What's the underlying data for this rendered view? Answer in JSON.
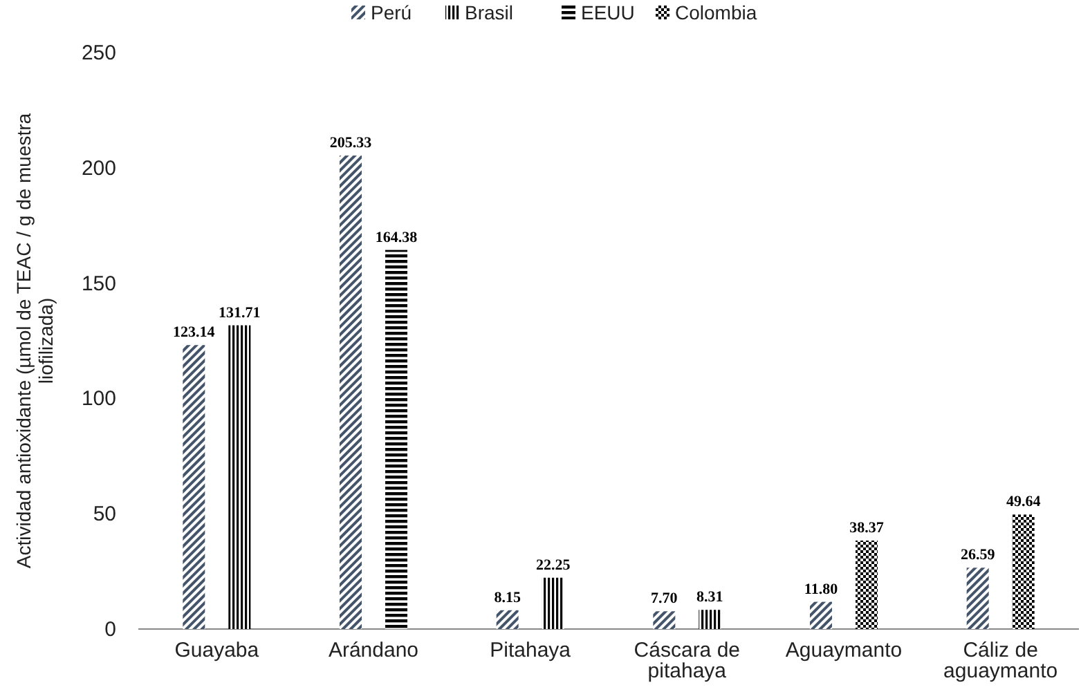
{
  "chart_data": {
    "type": "bar",
    "ylabel": "Actividad antioxidante (µmol de TEAC / g de muestra liofilizada)",
    "categories": [
      "Guayaba",
      "Arándano",
      "Pitahaya",
      "Cáscara de pitahaya",
      "Aguaymanto",
      "Cáliz de aguaymanto"
    ],
    "series": [
      {
        "name": "Perú",
        "color": "#44546a",
        "values": [
          123.14,
          205.33,
          8.15,
          7.7,
          11.8,
          26.59
        ],
        "value_labels": [
          "123.14",
          "205.33",
          "8.15",
          "7.70",
          "11.80",
          "26.59"
        ]
      },
      {
        "name": "Brasil",
        "color": "#000000",
        "values": [
          131.71,
          null,
          22.25,
          8.31,
          null,
          null
        ],
        "value_labels": [
          "131.71",
          null,
          "22.25",
          "8.31",
          null,
          null
        ]
      },
      {
        "name": "EEUU",
        "color": "#000000",
        "values": [
          null,
          164.38,
          null,
          null,
          null,
          null
        ],
        "value_labels": [
          null,
          "164.38",
          null,
          null,
          null,
          null
        ]
      },
      {
        "name": "Colombia",
        "color": "#000000",
        "values": [
          null,
          null,
          null,
          null,
          38.37,
          49.64
        ],
        "value_labels": [
          null,
          null,
          null,
          null,
          "38.37",
          "49.64"
        ]
      }
    ],
    "ylim": [
      0,
      250
    ],
    "yticks": [
      0,
      50,
      100,
      150,
      200,
      250
    ],
    "grid": false,
    "legend": "top"
  }
}
